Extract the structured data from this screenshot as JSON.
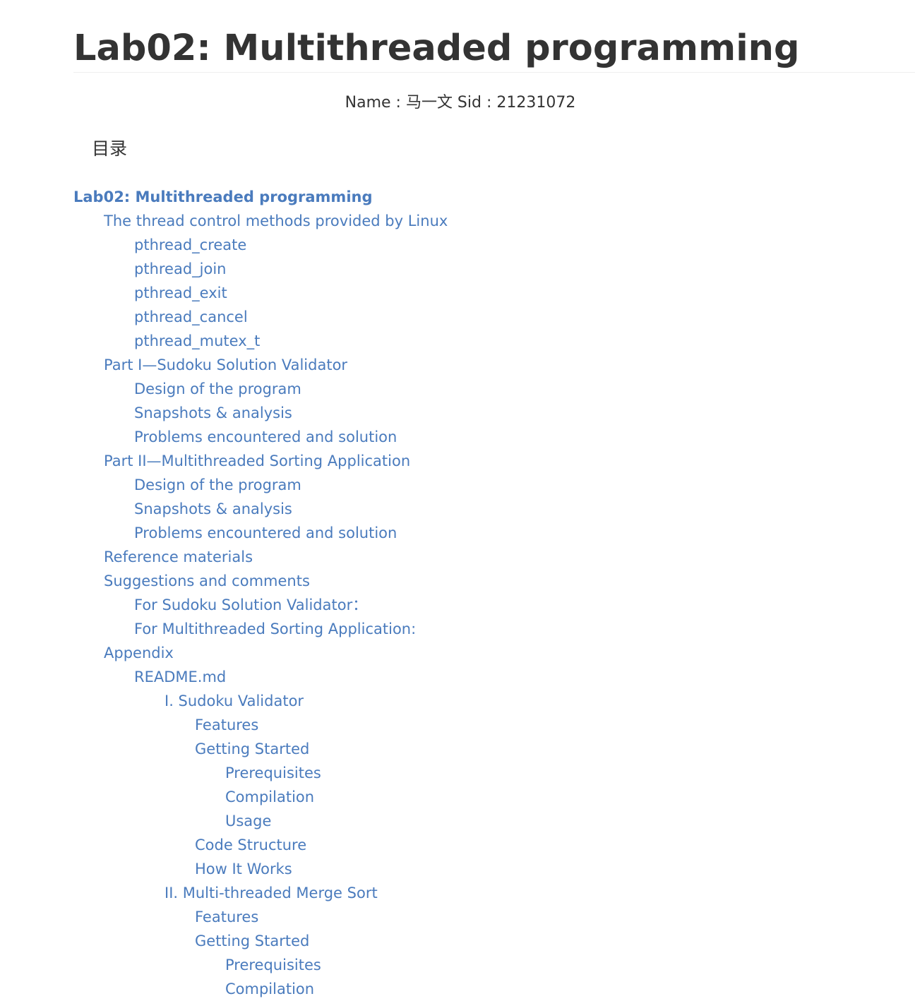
{
  "document": {
    "title": "Lab02: Multithreaded programming",
    "meta_line": "Name : 马一文 Sid : 21231072",
    "toc_heading": "目录"
  },
  "toc": [
    {
      "label": "Lab02: Multithreaded programming",
      "level": 1
    },
    {
      "label": "The thread control methods provided by Linux",
      "level": 2
    },
    {
      "label": "pthread_create",
      "level": 3
    },
    {
      "label": "pthread_join",
      "level": 3
    },
    {
      "label": "pthread_exit",
      "level": 3
    },
    {
      "label": "pthread_cancel",
      "level": 3
    },
    {
      "label": "pthread_mutex_t",
      "level": 3
    },
    {
      "label": "Part I—Sudoku Solution Validator",
      "level": 2
    },
    {
      "label": "Design of the program",
      "level": 3
    },
    {
      "label": "Snapshots & analysis",
      "level": 3
    },
    {
      "label": "Problems encountered and solution",
      "level": 3
    },
    {
      "label": "Part II—Multithreaded Sorting Application",
      "level": 2
    },
    {
      "label": "Design of the program",
      "level": 3
    },
    {
      "label": "Snapshots & analysis",
      "level": 3
    },
    {
      "label": "Problems encountered and solution",
      "level": 3
    },
    {
      "label": "Reference materials",
      "level": 2
    },
    {
      "label": "Suggestions and comments",
      "level": 2
    },
    {
      "label": "For Sudoku Solution Validator：",
      "level": 3
    },
    {
      "label": "For Multithreaded Sorting Application:",
      "level": 3
    },
    {
      "label": "Appendix",
      "level": 2
    },
    {
      "label": "README.md",
      "level": 3
    },
    {
      "label": "I. Sudoku Validator",
      "level": 4
    },
    {
      "label": "Features",
      "level": 5
    },
    {
      "label": "Getting Started",
      "level": 5
    },
    {
      "label": "Prerequisites",
      "level": 6
    },
    {
      "label": "Compilation",
      "level": 6
    },
    {
      "label": "Usage",
      "level": 6
    },
    {
      "label": "Code Structure",
      "level": 5
    },
    {
      "label": "How It Works",
      "level": 5
    },
    {
      "label": "II. Multi-threaded Merge Sort",
      "level": 4
    },
    {
      "label": "Features",
      "level": 5
    },
    {
      "label": "Getting Started",
      "level": 5
    },
    {
      "label": "Prerequisites",
      "level": 6
    },
    {
      "label": "Compilation",
      "level": 6
    }
  ]
}
